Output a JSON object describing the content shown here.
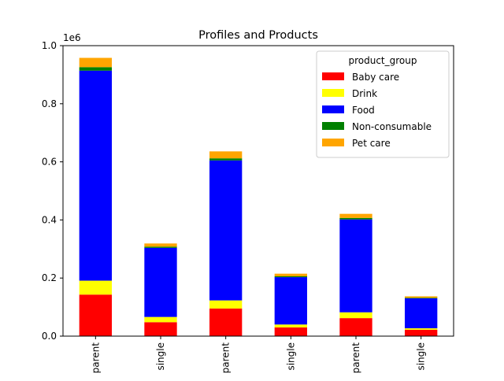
{
  "chart_data": {
    "type": "bar",
    "stacked": true,
    "title": "Profiles and Products",
    "xlabel": "",
    "ylabel": "",
    "y_scale_label": "1e6",
    "ylim": [
      0,
      1000000
    ],
    "yticks": [
      0,
      200000,
      400000,
      600000,
      800000,
      1000000
    ],
    "ytick_labels": [
      "0.0",
      "0.2",
      "0.4",
      "0.6",
      "0.8",
      "1.0"
    ],
    "categories": [
      "parent",
      "single",
      "parent",
      "single",
      "parent",
      "single"
    ],
    "grid": false,
    "legend": {
      "title": "product_group",
      "placement": "top-right"
    },
    "series": [
      {
        "name": "Baby care",
        "color": "#ff0000",
        "values": [
          143000,
          48000,
          95000,
          30000,
          62000,
          22000
        ]
      },
      {
        "name": "Drink",
        "color": "#ffff00",
        "values": [
          48000,
          18000,
          28000,
          10000,
          20000,
          5000
        ]
      },
      {
        "name": "Food",
        "color": "#0000ff",
        "values": [
          723000,
          238000,
          482000,
          163000,
          320000,
          103000
        ]
      },
      {
        "name": "Non-consumable",
        "color": "#008000",
        "values": [
          12000,
          4000,
          7000,
          3000,
          5000,
          2000
        ]
      },
      {
        "name": "Pet care",
        "color": "#ffa500",
        "values": [
          32000,
          11000,
          24000,
          9000,
          14000,
          5000
        ]
      }
    ]
  }
}
